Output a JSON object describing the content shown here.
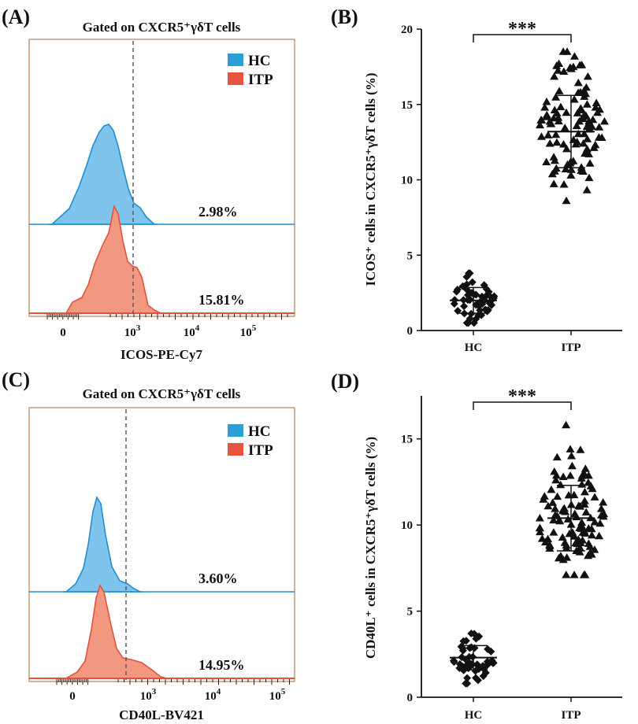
{
  "chart_data": [
    {
      "panel": "(A)",
      "type": "histogram",
      "title": "Gated on CXCR5⁺γδT cells",
      "xlabel": "ICOS-PE-Cy7",
      "xticks": [
        "0",
        "10",
        "10",
        "10"
      ],
      "xtick_exponents": [
        "",
        "3",
        "4",
        "5"
      ],
      "legend": [
        {
          "name": "HC",
          "color": "#2a9fd8"
        },
        {
          "name": "ITP",
          "color": "#e8533f"
        }
      ],
      "percentages": {
        "HC": "2.98%",
        "ITP": "15.81%"
      }
    },
    {
      "panel": "(B)",
      "type": "scatter",
      "ylabel": "ICOS⁺ cells in CXCR5⁺γδT cells (%)",
      "categories": [
        "HC",
        "ITP"
      ],
      "ylim": [
        0,
        20
      ],
      "yticks": [
        0,
        5,
        10,
        15,
        20
      ],
      "significance": "***",
      "series": [
        {
          "name": "HC",
          "marker": "diamond",
          "mean": 2.0,
          "sd": 0.85,
          "min": 0.5,
          "max": 3.8,
          "n": 52
        },
        {
          "name": "ITP",
          "marker": "triangle",
          "mean": 13.2,
          "sd": 2.4,
          "min": 8.6,
          "max": 18.5,
          "n": 110
        }
      ]
    },
    {
      "panel": "(C)",
      "type": "histogram",
      "title": "Gated on CXCR5⁺γδT cells",
      "xlabel": "CD40L-BV421",
      "xticks": [
        "0",
        "10",
        "10",
        "10"
      ],
      "xtick_exponents": [
        "",
        "3",
        "4",
        "5"
      ],
      "legend": [
        {
          "name": "HC",
          "color": "#2a9fd8"
        },
        {
          "name": "ITP",
          "color": "#e8533f"
        }
      ],
      "percentages": {
        "HC": "3.60%",
        "ITP": "14.95%"
      }
    },
    {
      "panel": "(D)",
      "type": "scatter",
      "ylabel": "CD40L⁺ cells in CXCR5⁺γδT cells (%)",
      "categories": [
        "HC",
        "ITP"
      ],
      "ylim": [
        0,
        17.5
      ],
      "yticks": [
        0,
        5,
        10,
        15
      ],
      "significance": "***",
      "series": [
        {
          "name": "HC",
          "marker": "diamond",
          "mean": 2.3,
          "sd": 0.7,
          "min": 0.8,
          "max": 3.7,
          "n": 52
        },
        {
          "name": "ITP",
          "marker": "triangle",
          "mean": 10.4,
          "sd": 1.9,
          "min": 7.1,
          "max": 15.8,
          "n": 110
        }
      ]
    }
  ]
}
